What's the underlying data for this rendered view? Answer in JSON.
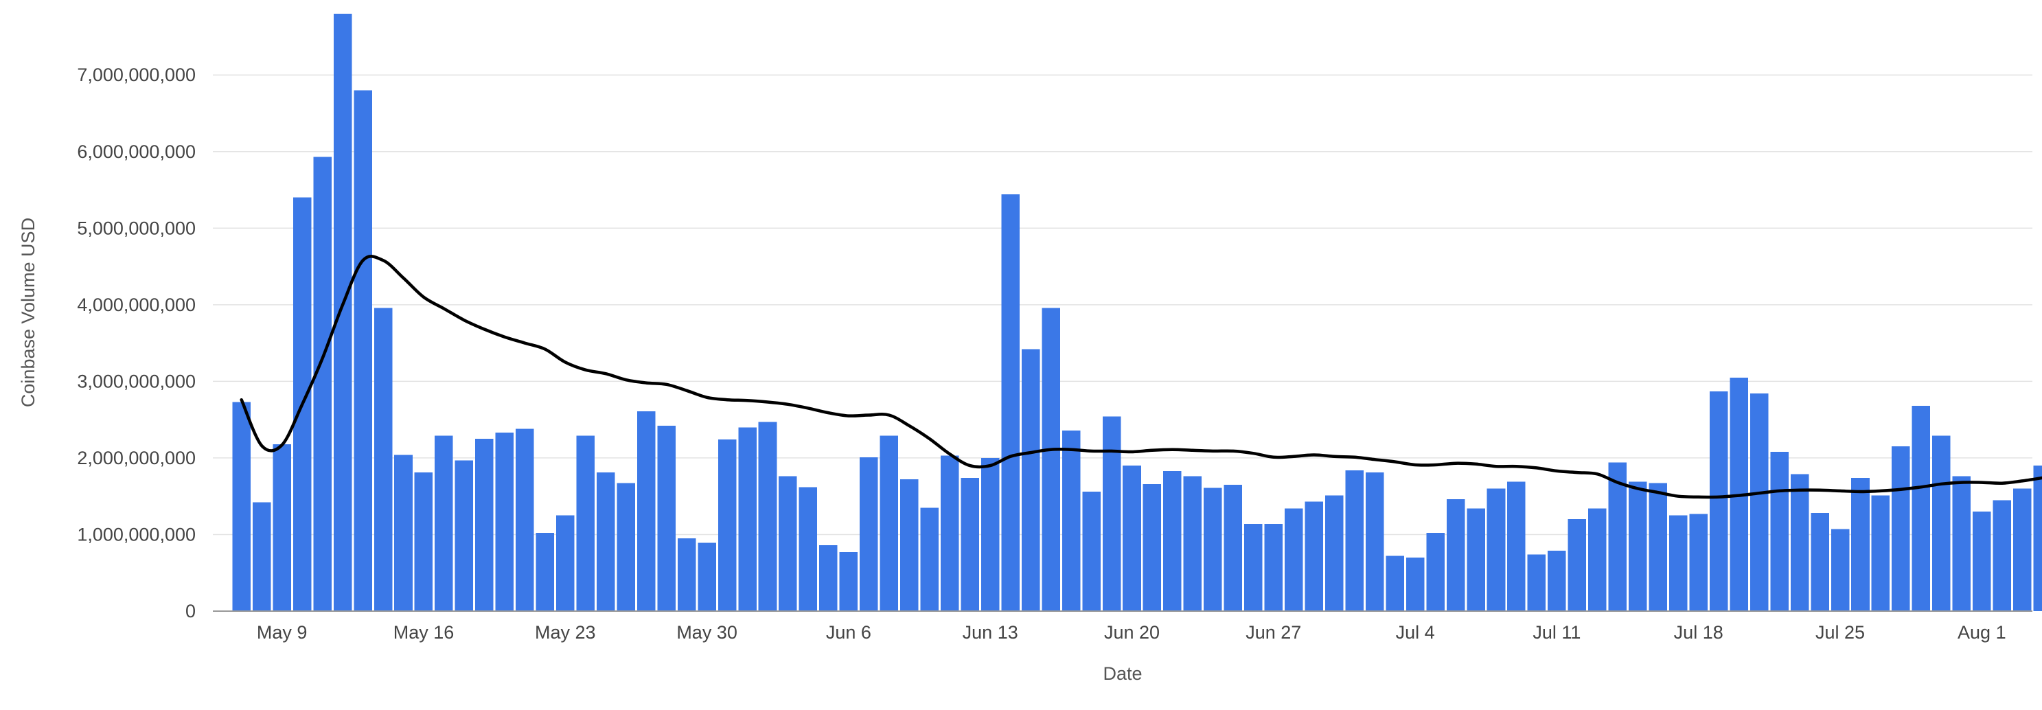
{
  "chart_data": {
    "type": "bar",
    "title": "",
    "xlabel": "Date",
    "ylabel": "Coinbase Volume USD",
    "ylim": [
      0,
      7800000000
    ],
    "yticks": [
      0,
      1000000000,
      2000000000,
      3000000000,
      4000000000,
      5000000000,
      6000000000,
      7000000000
    ],
    "ytick_labels": [
      "0",
      "1,000,000,000",
      "2,000,000,000",
      "3,000,000,000",
      "4,000,000,000",
      "5,000,000,000",
      "6,000,000,000",
      "7,000,000,000"
    ],
    "x_start": "2021-05-07",
    "x_end": "2021-08-03",
    "xticks": [
      {
        "date": "2021-05-09",
        "label": "May 9"
      },
      {
        "date": "2021-05-16",
        "label": "May 16"
      },
      {
        "date": "2021-05-23",
        "label": "May 23"
      },
      {
        "date": "2021-05-30",
        "label": "May 30"
      },
      {
        "date": "2021-06-06",
        "label": "Jun 6"
      },
      {
        "date": "2021-06-13",
        "label": "Jun 13"
      },
      {
        "date": "2021-06-20",
        "label": "Jun 20"
      },
      {
        "date": "2021-06-27",
        "label": "Jun 27"
      },
      {
        "date": "2021-07-04",
        "label": "Jul 4"
      },
      {
        "date": "2021-07-11",
        "label": "Jul 11"
      },
      {
        "date": "2021-07-18",
        "label": "Jul 18"
      },
      {
        "date": "2021-07-25",
        "label": "Jul 25"
      },
      {
        "date": "2021-08-01",
        "label": "Aug 1"
      }
    ],
    "grid": true,
    "legend": "none",
    "series": [
      {
        "type": "bar",
        "color": "#3b78e7",
        "values": [
          2730000000,
          1420000000,
          2180000000,
          5400000000,
          5930000000,
          7800000000,
          6800000000,
          3960000000,
          2040000000,
          1810000000,
          2290000000,
          1970000000,
          2250000000,
          2330000000,
          2380000000,
          1020000000,
          1250000000,
          2290000000,
          1810000000,
          1670000000,
          2610000000,
          2420000000,
          950000000,
          890000000,
          2240000000,
          2400000000,
          2470000000,
          1760000000,
          1620000000,
          860000000,
          770000000,
          2010000000,
          2290000000,
          1720000000,
          1350000000,
          2030000000,
          1740000000,
          2000000000,
          5440000000,
          3420000000,
          3960000000,
          2360000000,
          1560000000,
          2540000000,
          1900000000,
          1660000000,
          1830000000,
          1760000000,
          1610000000,
          1650000000,
          1140000000,
          1140000000,
          1340000000,
          1430000000,
          1510000000,
          1840000000,
          1810000000,
          720000000,
          700000000,
          1020000000,
          1460000000,
          1340000000,
          1600000000,
          1690000000,
          740000000,
          790000000,
          1200000000,
          1340000000,
          1940000000,
          1690000000,
          1670000000,
          1250000000,
          1270000000,
          2870000000,
          3050000000,
          2840000000,
          2080000000,
          1790000000,
          1280000000,
          1070000000,
          1740000000,
          1510000000,
          2150000000,
          2680000000,
          2290000000,
          1760000000,
          1300000000,
          1450000000,
          1600000000,
          1900000000
        ]
      },
      {
        "type": "line",
        "color": "#000000",
        "values": [
          2760000000,
          2160000000,
          2170000000,
          2700000000,
          3300000000,
          4000000000,
          4580000000,
          4580000000,
          4350000000,
          4100000000,
          3950000000,
          3800000000,
          3680000000,
          3580000000,
          3500000000,
          3420000000,
          3250000000,
          3150000000,
          3100000000,
          3020000000,
          2980000000,
          2960000000,
          2880000000,
          2790000000,
          2760000000,
          2750000000,
          2730000000,
          2700000000,
          2650000000,
          2590000000,
          2550000000,
          2560000000,
          2560000000,
          2420000000,
          2250000000,
          2050000000,
          1900000000,
          1900000000,
          2020000000,
          2070000000,
          2110000000,
          2110000000,
          2090000000,
          2090000000,
          2080000000,
          2100000000,
          2110000000,
          2100000000,
          2090000000,
          2090000000,
          2060000000,
          2010000000,
          2020000000,
          2040000000,
          2020000000,
          2010000000,
          1980000000,
          1950000000,
          1910000000,
          1910000000,
          1930000000,
          1920000000,
          1890000000,
          1890000000,
          1870000000,
          1830000000,
          1810000000,
          1790000000,
          1680000000,
          1600000000,
          1550000000,
          1500000000,
          1490000000,
          1490000000,
          1510000000,
          1540000000,
          1570000000,
          1580000000,
          1580000000,
          1570000000,
          1560000000,
          1570000000,
          1590000000,
          1620000000,
          1660000000,
          1680000000,
          1680000000,
          1670000000,
          1700000000,
          1740000000
        ]
      }
    ]
  }
}
